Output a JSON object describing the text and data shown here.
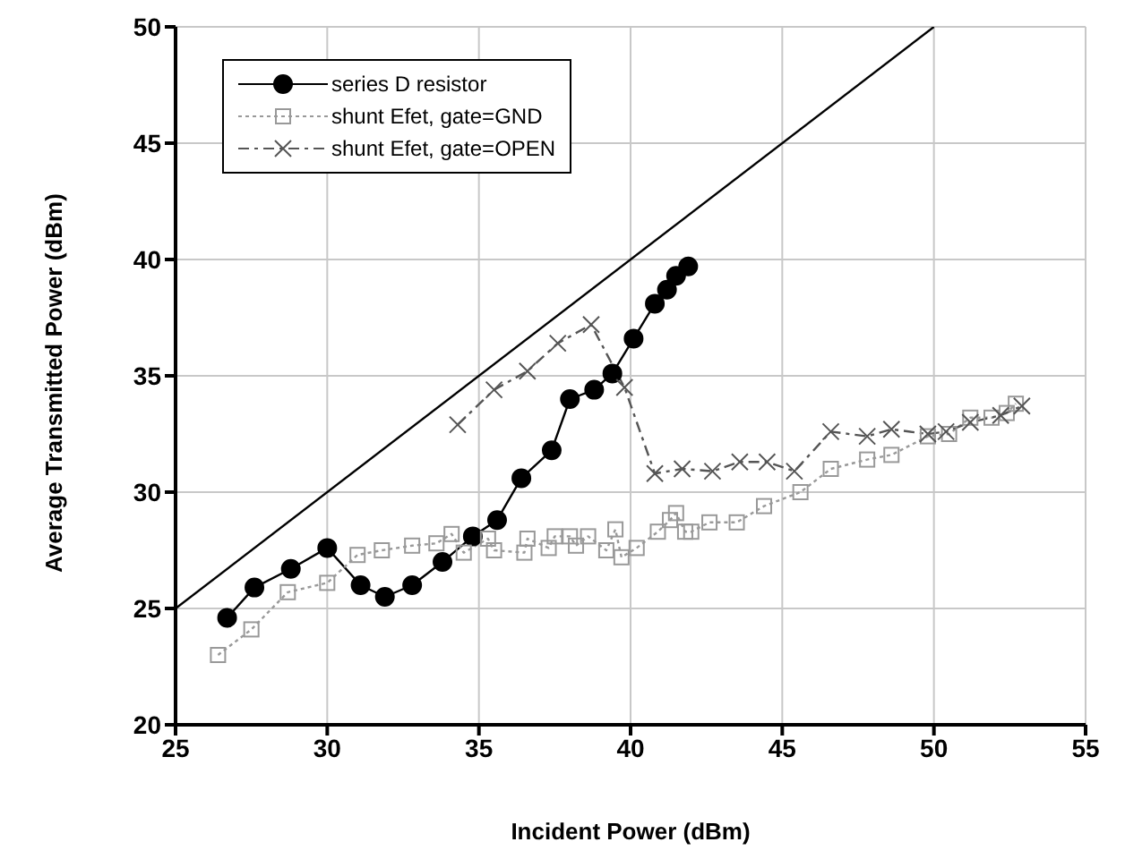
{
  "chart_data": {
    "type": "line",
    "xlabel": "Incident Power (dBm)",
    "ylabel": "Average Transmitted Power (dBm)",
    "xlim": [
      25,
      55
    ],
    "xticks": [
      25,
      30,
      35,
      40,
      45,
      50,
      55
    ],
    "ylim": [
      20,
      50
    ],
    "yticks": [
      20,
      25,
      30,
      35,
      40,
      45,
      50
    ],
    "grid": true,
    "legend": "top left",
    "series": [
      {
        "color": "#000000",
        "marker": "none",
        "line_style": "solid",
        "x": [
          25,
          50
        ],
        "values": [
          25,
          50
        ]
      },
      {
        "name": "series D resistor",
        "color": "#000000",
        "marker": "circle",
        "line_style": "solid",
        "x": [
          26.7,
          27.6,
          28.8,
          30.0,
          31.1,
          31.9,
          32.8,
          33.8,
          34.8,
          35.6,
          36.4,
          37.4,
          38.0,
          38.8,
          39.4,
          40.1,
          40.8,
          41.2,
          41.5,
          41.9
        ],
        "values": [
          24.6,
          25.9,
          26.7,
          27.6,
          26.0,
          25.5,
          26.0,
          27.0,
          28.1,
          28.8,
          30.6,
          31.8,
          34.0,
          34.4,
          35.1,
          36.6,
          38.1,
          38.7,
          39.3,
          39.7
        ]
      },
      {
        "name": "shunt Efet, gate=GND",
        "color": "#999999",
        "marker": "square",
        "line_style": "dotted",
        "x": [
          26.4,
          27.5,
          28.7,
          30.0,
          31.0,
          31.8,
          32.8,
          33.6,
          34.1,
          34.5,
          35.3,
          35.5,
          36.5,
          36.6,
          37.3,
          37.5,
          38.0,
          38.2,
          38.6,
          39.2,
          39.5,
          39.7,
          40.2,
          40.9,
          41.3,
          41.5,
          41.8,
          42.0,
          42.6,
          43.5,
          44.4,
          45.6,
          46.6,
          47.8,
          48.6,
          49.8,
          50.5,
          51.2,
          51.9,
          52.4,
          52.7
        ],
        "values": [
          23.0,
          24.1,
          25.7,
          26.1,
          27.3,
          27.5,
          27.7,
          27.8,
          28.2,
          27.4,
          28.0,
          27.5,
          27.4,
          28.0,
          27.6,
          28.1,
          28.1,
          27.7,
          28.1,
          27.5,
          28.4,
          27.2,
          27.6,
          28.3,
          28.8,
          29.1,
          28.3,
          28.3,
          28.7,
          28.7,
          29.4,
          30.0,
          31.0,
          31.4,
          31.6,
          32.4,
          32.5,
          33.2,
          33.2,
          33.4,
          33.8
        ]
      },
      {
        "name": "shunt Efet, gate=OPEN",
        "color": "#555555",
        "marker": "cross",
        "line_style": "dashed",
        "x": [
          34.3,
          35.5,
          36.6,
          37.6,
          38.7,
          39.8,
          40.8,
          41.7,
          42.7,
          43.6,
          44.5,
          45.4,
          46.6,
          47.8,
          48.6,
          49.8,
          50.4,
          51.2,
          52.2,
          52.9
        ],
        "values": [
          32.9,
          34.4,
          35.2,
          36.4,
          37.2,
          34.5,
          30.8,
          31.0,
          30.9,
          31.3,
          31.3,
          30.9,
          32.6,
          32.4,
          32.7,
          32.5,
          32.6,
          33.0,
          33.3,
          33.7
        ]
      }
    ]
  }
}
